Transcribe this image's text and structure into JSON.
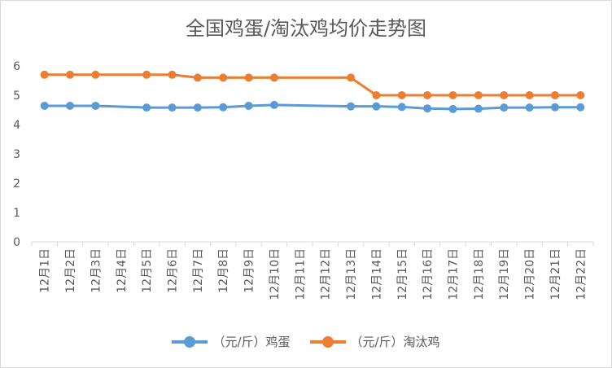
{
  "chart_data": {
    "type": "line",
    "title": "全国鸡蛋/淘汰鸡均价走势图",
    "xlabel": "",
    "ylabel": "",
    "ylim": [
      0,
      6
    ],
    "yticks": [
      "0",
      "1",
      "2",
      "3",
      "4",
      "5",
      "6"
    ],
    "categories": [
      "12月1日",
      "12月2日",
      "12月3日",
      "12月4日",
      "12月5日",
      "12月6日",
      "12月7日",
      "12月8日",
      "12月9日",
      "12月10日",
      "12月11日",
      "12月12日",
      "12月13日",
      "12月14日",
      "12月15日",
      "12月16日",
      "12月17日",
      "12月18日",
      "12月19日",
      "12月20日",
      "12月21日",
      "12月22日"
    ],
    "series": [
      {
        "name": "（元/斤）鸡蛋",
        "color": "#5b9bd5",
        "values": [
          4.64,
          4.64,
          4.64,
          null,
          4.58,
          4.58,
          4.58,
          4.59,
          4.64,
          4.67,
          null,
          null,
          4.62,
          4.62,
          4.6,
          4.55,
          4.53,
          4.54,
          4.58,
          4.58,
          4.59,
          4.59
        ]
      },
      {
        "name": "（元/斤）淘汰鸡",
        "color": "#ed7d31",
        "values": [
          5.7,
          5.7,
          5.7,
          null,
          5.7,
          5.7,
          5.6,
          5.6,
          5.6,
          5.6,
          null,
          null,
          5.6,
          5.0,
          5.0,
          5.0,
          5.0,
          5.0,
          5.0,
          5.0,
          5.0,
          5.0
        ]
      }
    ],
    "grid": false,
    "legend": "bottom"
  }
}
